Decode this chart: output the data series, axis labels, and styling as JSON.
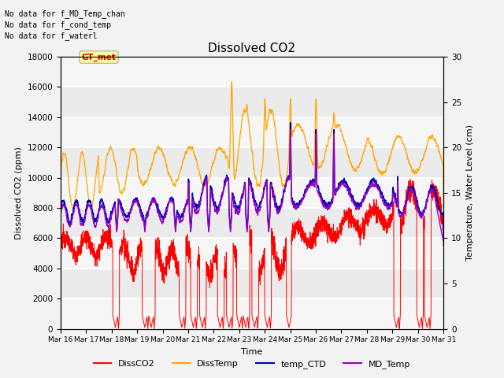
{
  "title": "Dissolved CO2",
  "xlabel": "Time",
  "ylabel_left": "Dissolved CO2 (ppm)",
  "ylabel_right": "Temperature, Water Level (cm)",
  "ylim_left": [
    0,
    18000
  ],
  "ylim_right": [
    0,
    30
  ],
  "annotations": [
    "No data for f_MD_Temp_chan",
    "No data for f_cond_temp",
    "No data for f_waterl"
  ],
  "gt_met_label": "GT_met",
  "xtick_labels": [
    "Mar 16",
    "Mar 17",
    "Mar 18",
    "Mar 19",
    "Mar 20",
    "Mar 21",
    "Mar 22",
    "Mar 23",
    "Mar 24",
    "Mar 25",
    "Mar 26",
    "Mar 27",
    "Mar 28",
    "Mar 29",
    "Mar 30",
    "Mar 31"
  ],
  "legend_entries": [
    "DissCO2",
    "DissTemp",
    "temp_CTD",
    "MD_Temp"
  ],
  "legend_colors": [
    "#FF0000",
    "#FFA500",
    "#0000BB",
    "#9900BB"
  ],
  "plot_bg_color": "#EBEBEB",
  "grid_color": "#FFFFFF"
}
